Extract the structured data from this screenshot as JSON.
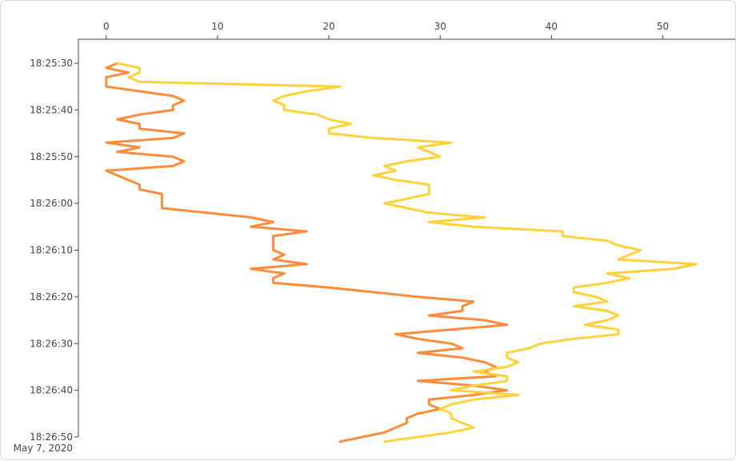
{
  "chart_data": {
    "type": "line",
    "orientation": "vertical-time",
    "title": "",
    "xlabel": "",
    "ylabel": "",
    "xlim": [
      -2.5,
      56.5
    ],
    "x_ticks": [
      0,
      10,
      20,
      30,
      40,
      50
    ],
    "x_tick_labels": [
      "0",
      "10",
      "20",
      "30",
      "40",
      "50"
    ],
    "time_ticks": [
      "18:25:30",
      "18:25:40",
      "18:25:50",
      "18:26:00",
      "18:26:10",
      "18:26:20",
      "18:26:30",
      "18:26:40",
      "18:26:50"
    ],
    "time_date_label": "May 7, 2020",
    "time_range": [
      "18:25:30",
      "18:26:50"
    ],
    "grid": false,
    "series": [
      {
        "color": "#FF8C3C",
        "points": [
          [
            "18:25:30",
            1
          ],
          [
            "18:25:31",
            0
          ],
          [
            "18:25:32",
            2
          ],
          [
            "18:25:33",
            0
          ],
          [
            "18:25:34",
            0
          ],
          [
            "18:25:35",
            0
          ],
          [
            "18:25:36",
            3
          ],
          [
            "18:25:37",
            6
          ],
          [
            "18:25:38",
            7
          ],
          [
            "18:25:39",
            6
          ],
          [
            "18:25:40",
            6
          ],
          [
            "18:25:41",
            3
          ],
          [
            "18:25:42",
            1
          ],
          [
            "18:25:43",
            3
          ],
          [
            "18:25:44",
            3
          ],
          [
            "18:25:45",
            7
          ],
          [
            "18:25:46",
            6
          ],
          [
            "18:25:47",
            0
          ],
          [
            "18:25:48",
            3
          ],
          [
            "18:25:49",
            1
          ],
          [
            "18:25:50",
            6
          ],
          [
            "18:25:51",
            7
          ],
          [
            "18:25:52",
            6
          ],
          [
            "18:25:53",
            0
          ],
          [
            "18:25:54",
            1
          ],
          [
            "18:25:55",
            2
          ],
          [
            "18:25:56",
            3
          ],
          [
            "18:25:57",
            3
          ],
          [
            "18:25:58",
            5
          ],
          [
            "18:25:59",
            5
          ],
          [
            "18:26:00",
            5
          ],
          [
            "18:26:01",
            5
          ],
          [
            "18:26:02",
            9
          ],
          [
            "18:26:03",
            13
          ],
          [
            "18:26:04",
            15
          ],
          [
            "18:26:05",
            13
          ],
          [
            "18:26:06",
            18
          ],
          [
            "18:26:07",
            15
          ],
          [
            "18:26:08",
            15
          ],
          [
            "18:26:09",
            15
          ],
          [
            "18:26:10",
            15
          ],
          [
            "18:26:11",
            16
          ],
          [
            "18:26:12",
            15
          ],
          [
            "18:26:13",
            18
          ],
          [
            "18:26:14",
            13
          ],
          [
            "18:26:15",
            16
          ],
          [
            "18:26:16",
            15
          ],
          [
            "18:26:17",
            15
          ],
          [
            "18:26:18",
            20
          ],
          [
            "18:26:19",
            24
          ],
          [
            "18:26:20",
            28
          ],
          [
            "18:26:21",
            33
          ],
          [
            "18:26:22",
            32
          ],
          [
            "18:26:23",
            32
          ],
          [
            "18:26:24",
            29
          ],
          [
            "18:26:25",
            34
          ],
          [
            "18:26:26",
            36
          ],
          [
            "18:26:27",
            31
          ],
          [
            "18:26:28",
            26
          ],
          [
            "18:26:29",
            28
          ],
          [
            "18:26:30",
            31
          ],
          [
            "18:26:31",
            32
          ],
          [
            "18:26:32",
            28
          ],
          [
            "18:26:33",
            32
          ],
          [
            "18:26:34",
            34
          ],
          [
            "18:26:35",
            35
          ],
          [
            "18:26:36",
            34
          ],
          [
            "18:26:37",
            35
          ],
          [
            "18:26:38",
            28
          ],
          [
            "18:26:39",
            33
          ],
          [
            "18:26:40",
            36
          ],
          [
            "18:26:41",
            33
          ],
          [
            "18:26:42",
            29
          ],
          [
            "18:26:43",
            29
          ],
          [
            "18:26:44",
            30
          ],
          [
            "18:26:45",
            28
          ],
          [
            "18:26:46",
            27
          ],
          [
            "18:26:47",
            27
          ],
          [
            "18:26:48",
            26
          ],
          [
            "18:26:49",
            25
          ],
          [
            "18:26:50",
            23
          ],
          [
            "18:26:51",
            21
          ]
        ]
      },
      {
        "color": "#FFD23C",
        "points": [
          [
            "18:25:30",
            1
          ],
          [
            "18:25:31",
            3
          ],
          [
            "18:25:32",
            3
          ],
          [
            "18:25:33",
            2
          ],
          [
            "18:25:34",
            3
          ],
          [
            "18:25:35",
            21
          ],
          [
            "18:25:36",
            18
          ],
          [
            "18:25:37",
            16
          ],
          [
            "18:25:38",
            15
          ],
          [
            "18:25:39",
            16
          ],
          [
            "18:25:40",
            16
          ],
          [
            "18:25:41",
            19
          ],
          [
            "18:25:42",
            20
          ],
          [
            "18:25:43",
            22
          ],
          [
            "18:25:44",
            20
          ],
          [
            "18:25:45",
            20
          ],
          [
            "18:25:46",
            24
          ],
          [
            "18:25:47",
            31
          ],
          [
            "18:25:48",
            28
          ],
          [
            "18:25:49",
            29
          ],
          [
            "18:25:50",
            30
          ],
          [
            "18:25:51",
            27
          ],
          [
            "18:25:52",
            25
          ],
          [
            "18:25:53",
            26
          ],
          [
            "18:25:54",
            24
          ],
          [
            "18:25:55",
            26
          ],
          [
            "18:25:56",
            29
          ],
          [
            "18:25:57",
            29
          ],
          [
            "18:25:58",
            29
          ],
          [
            "18:25:59",
            27
          ],
          [
            "18:26:00",
            25
          ],
          [
            "18:26:01",
            27
          ],
          [
            "18:26:02",
            29
          ],
          [
            "18:26:03",
            34
          ],
          [
            "18:26:04",
            29
          ],
          [
            "18:26:05",
            33
          ],
          [
            "18:26:06",
            41
          ],
          [
            "18:26:07",
            41
          ],
          [
            "18:26:08",
            45
          ],
          [
            "18:26:09",
            46
          ],
          [
            "18:26:10",
            48
          ],
          [
            "18:26:11",
            47
          ],
          [
            "18:26:12",
            46
          ],
          [
            "18:26:13",
            53
          ],
          [
            "18:26:14",
            51
          ],
          [
            "18:26:15",
            45
          ],
          [
            "18:26:16",
            47
          ],
          [
            "18:26:17",
            45
          ],
          [
            "18:26:18",
            42
          ],
          [
            "18:26:19",
            42
          ],
          [
            "18:26:20",
            44
          ],
          [
            "18:26:21",
            45
          ],
          [
            "18:26:22",
            42
          ],
          [
            "18:26:23",
            45
          ],
          [
            "18:26:24",
            46
          ],
          [
            "18:26:25",
            45
          ],
          [
            "18:26:26",
            43
          ],
          [
            "18:26:27",
            46
          ],
          [
            "18:26:28",
            46
          ],
          [
            "18:26:29",
            42
          ],
          [
            "18:26:30",
            39
          ],
          [
            "18:26:31",
            38
          ],
          [
            "18:26:32",
            36
          ],
          [
            "18:26:33",
            36
          ],
          [
            "18:26:34",
            37
          ],
          [
            "18:26:35",
            36
          ],
          [
            "18:26:36",
            33
          ],
          [
            "18:26:37",
            36
          ],
          [
            "18:26:38",
            36
          ],
          [
            "18:26:39",
            33
          ],
          [
            "18:26:40",
            31
          ],
          [
            "18:26:41",
            37
          ],
          [
            "18:26:42",
            33
          ],
          [
            "18:26:43",
            31
          ],
          [
            "18:26:44",
            30
          ],
          [
            "18:26:45",
            31
          ],
          [
            "18:26:46",
            31
          ],
          [
            "18:26:47",
            32
          ],
          [
            "18:26:48",
            33
          ],
          [
            "18:26:49",
            31
          ],
          [
            "18:26:50",
            28
          ],
          [
            "18:26:51",
            25
          ]
        ]
      }
    ]
  }
}
